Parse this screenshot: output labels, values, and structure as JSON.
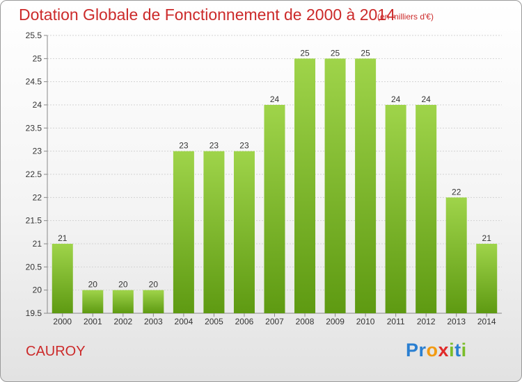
{
  "colors": {
    "title": "#cc2a2a",
    "bar_top": "#9fd44a",
    "bar_bottom": "#5e9a12",
    "grid": "#d2d2d2"
  },
  "header": {
    "title": "Dotation Globale de Fonctionnement de 2000 à 2014",
    "unit": "(en milliers d'€)"
  },
  "footer": {
    "commune": "CAUROY",
    "brand_letters": [
      "P",
      "r",
      "o",
      "x",
      "i",
      "t",
      "i"
    ],
    "brand_colors": [
      "#2a7fd1",
      "#2a7fd1",
      "#f29a12",
      "#e02a2a",
      "#7bbd2a",
      "#2a7fd1",
      "#7bbd2a"
    ]
  },
  "chart_data": {
    "type": "bar",
    "title": "Dotation Globale de Fonctionnement de 2000 à 2014",
    "subtitle": "(en milliers d'€)",
    "xlabel": "",
    "ylabel": "",
    "categories": [
      "2000",
      "2001",
      "2002",
      "2003",
      "2004",
      "2005",
      "2006",
      "2007",
      "2008",
      "2009",
      "2010",
      "2011",
      "2012",
      "2013",
      "2014"
    ],
    "values": [
      21,
      20,
      20,
      20,
      23,
      23,
      23,
      24,
      25,
      25,
      25,
      24,
      24,
      22,
      21
    ],
    "ylim": [
      19.5,
      25.5
    ],
    "yticks": [
      "19.5",
      "20",
      "20.5",
      "21",
      "21.5",
      "22",
      "22.5",
      "23",
      "23.5",
      "24",
      "24.5",
      "25",
      "25.5"
    ],
    "grid": true,
    "legend": "none"
  }
}
